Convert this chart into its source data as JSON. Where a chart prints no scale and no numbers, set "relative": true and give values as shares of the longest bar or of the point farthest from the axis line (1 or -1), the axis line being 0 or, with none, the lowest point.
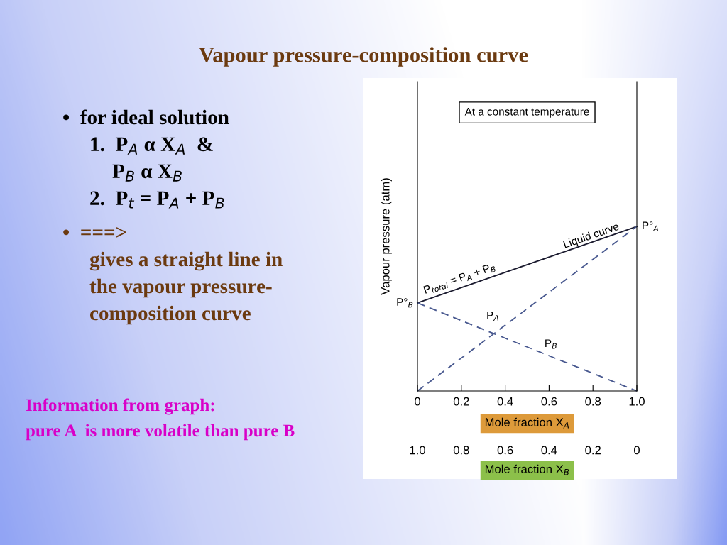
{
  "chart_data": {
    "type": "line",
    "title": "Vapour pressure-composition curve",
    "ylabel": "Vapour pressure (atm)",
    "xlabel": "Mole fraction X$_{A}$",
    "x2label": "Mole fraction X$_{B}$",
    "x": [
      0,
      1.0
    ],
    "relative": true,
    "series": [
      {
        "color": "#1a1a2e",
        "line_style": "solid",
        "values": [
          0.535,
          1
        ]
      },
      {
        "color": "#4a5a90",
        "line_style": "dashed",
        "values": [
          0,
          1
        ]
      },
      {
        "color": "#4a5a90",
        "line_style": "dashed",
        "values": [
          0.535,
          0
        ]
      }
    ],
    "xlim": [
      0,
      1.0
    ],
    "xticks": [
      0,
      0.2,
      0.4,
      0.6,
      0.8,
      {
        "value": 1,
        "label": "1.0"
      }
    ],
    "x2lim": [
      1.0,
      0
    ],
    "x2ticks": [
      {
        "value": 1,
        "label": "1.0"
      },
      0.8,
      0.6,
      0.4,
      0.2,
      0
    ],
    "grid": false,
    "legend": false,
    "marker": "none",
    "annotations": [
      "At a constant temperature",
      {
        "text": "Liquid curve",
        "x": 0.8,
        "y": 0.9
      },
      {
        "text": "P$_{total}$ = P$_{A}$ + P$_{B}$",
        "x": 0.2,
        "y": 0.64
      },
      {
        "text": "P°$_{A}$",
        "x": 1.0,
        "y": 1
      },
      {
        "text": "P°$_{B}$",
        "x": 0,
        "y": 0.535
      },
      {
        "text": "P$_{A}$",
        "x": 0.4,
        "y": 0.4
      },
      {
        "text": "P$_{B}$",
        "x": 0.57,
        "y": 0.23
      },
      "•  for ideal solution",
      "1.  P$_{A}$ α X$_{A}$  &",
      "P$_{B}$ α X$_{B}$",
      "2.  P$_{t}$ = P$_{A}$ + P$_{B}$",
      "•  ===>",
      "gives a straight line in",
      "the vapour pressure-",
      "composition curve",
      "Information from graph:",
      "pure A  is more volatile than pure B"
    ]
  }
}
